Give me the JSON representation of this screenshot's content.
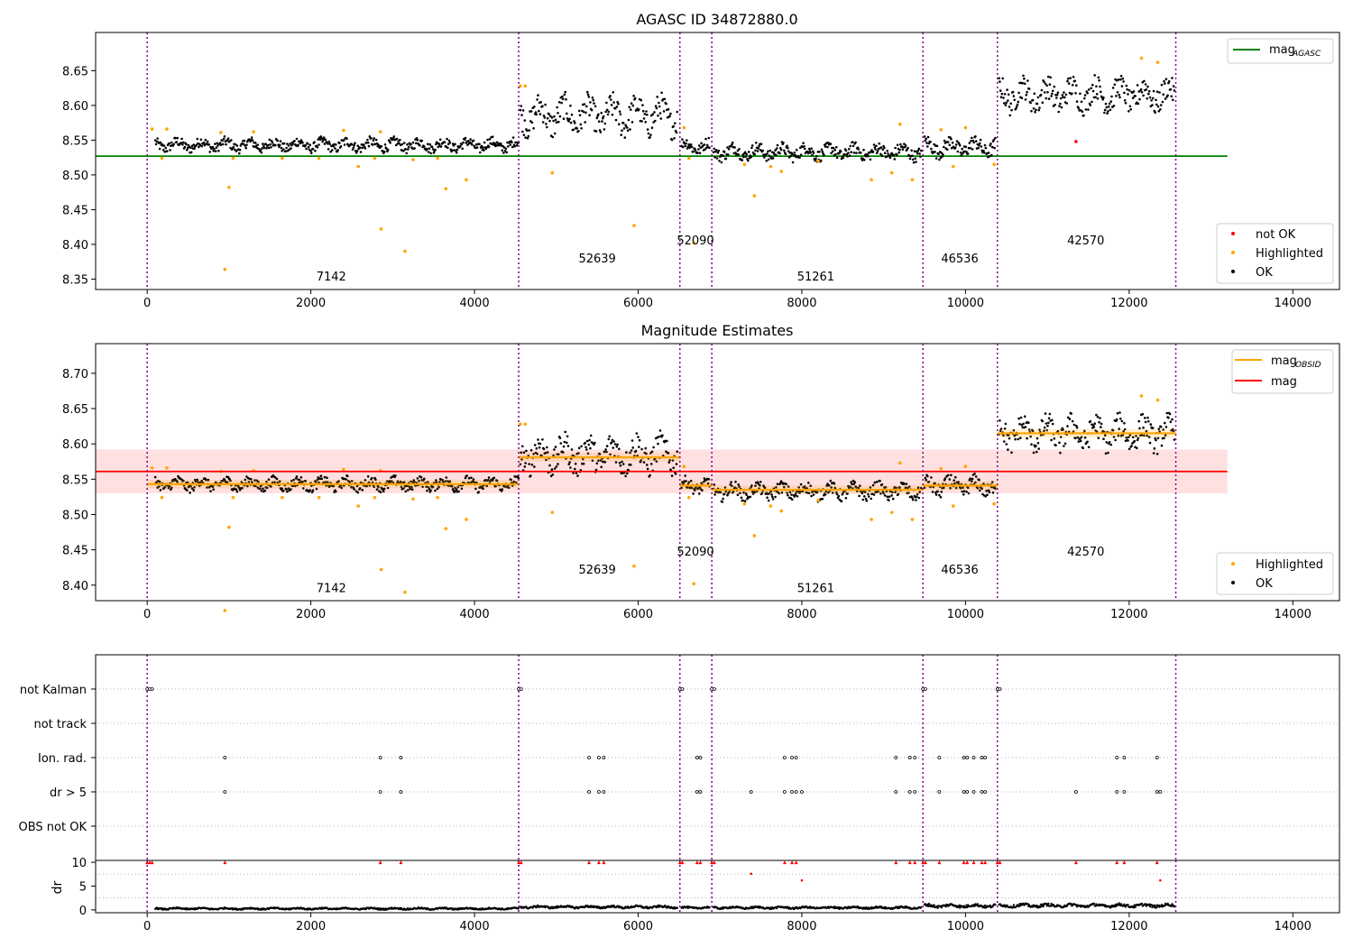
{
  "chart_data": [
    {
      "type": "scatter",
      "title": "AGASC ID 34872880.0",
      "xlim": [
        -630,
        14570
      ],
      "ylim": [
        8.335,
        8.705
      ],
      "x_ticks": [
        0,
        2000,
        4000,
        6000,
        8000,
        10000,
        12000,
        14000
      ],
      "y_ticks": [
        8.35,
        8.4,
        8.45,
        8.5,
        8.55,
        8.6,
        8.65
      ],
      "y_tick_labels": [
        "8.35",
        "8.40",
        "8.45",
        "8.50",
        "8.55",
        "8.60",
        "8.65"
      ],
      "obsid_boundaries": [
        0,
        4540,
        6510,
        6900,
        9480,
        10390,
        12570
      ],
      "obsid_labels": [
        {
          "text": "7142",
          "x": 2250,
          "y": 8.348
        },
        {
          "text": "52639",
          "x": 5500,
          "y": 8.374
        },
        {
          "text": "52090",
          "x": 6700,
          "y": 8.4
        },
        {
          "text": "51261",
          "x": 8170,
          "y": 8.348
        },
        {
          "text": "46536",
          "x": 9930,
          "y": 8.374
        },
        {
          "text": "42570",
          "x": 11470,
          "y": 8.4
        }
      ],
      "series": [
        {
          "name": "OK",
          "color": "#000000",
          "segments": [
            {
              "x": [
                100,
                4540
              ],
              "level": 8.543,
              "spread": 0.009
            },
            {
              "x": [
                4560,
                6480
              ],
              "level": 8.585,
              "spread": 0.025
            },
            {
              "x": [
                6530,
                6880
              ],
              "level": 8.541,
              "spread": 0.01
            },
            {
              "x": [
                6920,
                9460
              ],
              "level": 8.533,
              "spread": 0.011
            },
            {
              "x": [
                9500,
                10370
              ],
              "level": 8.54,
              "spread": 0.013
            },
            {
              "x": [
                10410,
                12560
              ],
              "level": 8.615,
              "spread": 0.022
            }
          ]
        },
        {
          "name": "Highlighted",
          "color": "#ffa500",
          "points": [
            [
              60,
              8.566
            ],
            [
              240,
              8.566
            ],
            [
              180,
              8.524
            ],
            [
              900,
              8.561
            ],
            [
              950,
              8.364
            ],
            [
              1000,
              8.482
            ],
            [
              1050,
              8.524
            ],
            [
              1300,
              8.562
            ],
            [
              1650,
              8.524
            ],
            [
              2100,
              8.524
            ],
            [
              2400,
              8.564
            ],
            [
              2580,
              8.512
            ],
            [
              2780,
              8.524
            ],
            [
              2850,
              8.562
            ],
            [
              2860,
              8.422
            ],
            [
              3150,
              8.39
            ],
            [
              3250,
              8.522
            ],
            [
              3550,
              8.524
            ],
            [
              3650,
              8.48
            ],
            [
              3900,
              8.493
            ],
            [
              4560,
              8.628
            ],
            [
              4620,
              8.628
            ],
            [
              4950,
              8.503
            ],
            [
              5950,
              8.427
            ],
            [
              6560,
              8.568
            ],
            [
              6620,
              8.524
            ],
            [
              6680,
              8.402
            ],
            [
              7300,
              8.515
            ],
            [
              7420,
              8.47
            ],
            [
              7620,
              8.512
            ],
            [
              7750,
              8.505
            ],
            [
              8200,
              8.52
            ],
            [
              8850,
              8.493
            ],
            [
              9100,
              8.503
            ],
            [
              9200,
              8.573
            ],
            [
              9350,
              8.493
            ],
            [
              9700,
              8.565
            ],
            [
              9850,
              8.512
            ],
            [
              10000,
              8.568
            ],
            [
              10350,
              8.515
            ],
            [
              12150,
              8.668
            ],
            [
              12350,
              8.662
            ]
          ]
        },
        {
          "name": "not OK",
          "color": "#ff0000",
          "points": [
            [
              11350,
              8.548
            ]
          ]
        }
      ],
      "reference_lines": [
        {
          "name": "mag_AGASC",
          "y": 8.527,
          "color": "#008000",
          "x": [
            -630,
            13200
          ]
        }
      ],
      "legend": {
        "upper_right": [
          "mag_AGASC"
        ],
        "lower_right": [
          "not OK",
          "Highlighted",
          "OK"
        ]
      }
    },
    {
      "type": "scatter",
      "title": "Magnitude Estimates",
      "xlim": [
        -630,
        14570
      ],
      "ylim": [
        8.378,
        8.742
      ],
      "x_ticks": [
        0,
        2000,
        4000,
        6000,
        8000,
        10000,
        12000,
        14000
      ],
      "y_ticks": [
        8.4,
        8.45,
        8.5,
        8.55,
        8.6,
        8.65,
        8.7
      ],
      "y_tick_labels": [
        "8.40",
        "8.45",
        "8.50",
        "8.55",
        "8.60",
        "8.65",
        "8.70"
      ],
      "obsid_boundaries": [
        0,
        4540,
        6510,
        6900,
        9480,
        10390,
        12570
      ],
      "obsid_labels": [
        {
          "text": "7142",
          "x": 2250,
          "y": 8.39
        },
        {
          "text": "52639",
          "x": 5500,
          "y": 8.416
        },
        {
          "text": "52090",
          "x": 6700,
          "y": 8.442
        },
        {
          "text": "51261",
          "x": 8170,
          "y": 8.39
        },
        {
          "text": "46536",
          "x": 9930,
          "y": 8.416
        },
        {
          "text": "42570",
          "x": 11470,
          "y": 8.442
        }
      ],
      "mag": {
        "name": "mag",
        "y": 8.561,
        "band": [
          8.53,
          8.592
        ],
        "x": [
          -630,
          13200
        ],
        "color": "#ff0000"
      },
      "mag_obsid": {
        "name": "mag_OBSID",
        "color": "#ffa500",
        "levels": [
          {
            "x": [
              0,
              4540
            ],
            "y": 8.543
          },
          {
            "x": [
              4540,
              6510
            ],
            "y": 8.581
          },
          {
            "x": [
              6510,
              6900
            ],
            "y": 8.541
          },
          {
            "x": [
              6900,
              9480
            ],
            "y": 8.535
          },
          {
            "x": [
              9480,
              10390
            ],
            "y": 8.541
          },
          {
            "x": [
              10390,
              12570
            ],
            "y": 8.615
          }
        ]
      },
      "legend": {
        "upper_right": [
          "mag_OBSID",
          "mag"
        ],
        "lower_right": [
          "Highlighted",
          "OK"
        ]
      }
    },
    {
      "type": "scatter",
      "title": "",
      "xlim": [
        -630,
        14570
      ],
      "x_ticks": [
        0,
        2000,
        4000,
        6000,
        8000,
        10000,
        12000,
        14000
      ],
      "flag_rows": [
        "not Kalman",
        "not track",
        "Ion. rad.",
        "dr > 5",
        "OBS not OK"
      ],
      "flag_points": {
        "not Kalman": [
          0,
          30,
          60,
          4540,
          4570,
          6510,
          6540,
          6900,
          6930,
          9480,
          9510,
          10390,
          10420
        ],
        "not track": [],
        "Ion. rad.": [
          950,
          2850,
          3100,
          5400,
          5520,
          5580,
          6720,
          6760,
          7790,
          7880,
          7930,
          9150,
          9320,
          9380,
          9680,
          9980,
          10020,
          10100,
          10200,
          10240,
          11850,
          11940,
          12340
        ],
        "dr > 5": [
          950,
          2850,
          3100,
          5400,
          5520,
          5580,
          6720,
          6760,
          7380,
          7790,
          7880,
          7930,
          8000,
          9150,
          9320,
          9380,
          9680,
          9980,
          10020,
          10100,
          10200,
          10240,
          11350,
          11850,
          11940,
          12340,
          12380
        ],
        "OBS not OK": []
      },
      "dr_panel": {
        "ylabel": "dr",
        "y_ticks": [
          0,
          5,
          10
        ],
        "ylim": [
          -0.6,
          10.4
        ],
        "ok_segments": [
          {
            "x": [
              100,
              4540
            ],
            "level": 0.25,
            "spread": 0.18
          },
          {
            "x": [
              4560,
              6480
            ],
            "level": 0.6,
            "spread": 0.25
          },
          {
            "x": [
              6530,
              6880
            ],
            "level": 0.45,
            "spread": 0.2
          },
          {
            "x": [
              6920,
              9460
            ],
            "level": 0.45,
            "spread": 0.22
          },
          {
            "x": [
              9500,
              10370
            ],
            "level": 0.85,
            "spread": 0.35
          },
          {
            "x": [
              10410,
              12560
            ],
            "level": 0.9,
            "spread": 0.35
          }
        ],
        "capped_x": [
          0,
          30,
          60,
          950,
          2850,
          3100,
          4540,
          4570,
          5400,
          5520,
          5580,
          6510,
          6540,
          6720,
          6760,
          6900,
          6930,
          7790,
          7880,
          7930,
          9150,
          9320,
          9380,
          9480,
          9510,
          9680,
          9980,
          10020,
          10100,
          10200,
          10240,
          10390,
          10420,
          11350,
          11850,
          11940,
          12340
        ],
        "dr_points": [
          [
            7380,
            7.6
          ],
          [
            8000,
            6.2
          ],
          [
            12380,
            6.2
          ]
        ]
      }
    }
  ]
}
